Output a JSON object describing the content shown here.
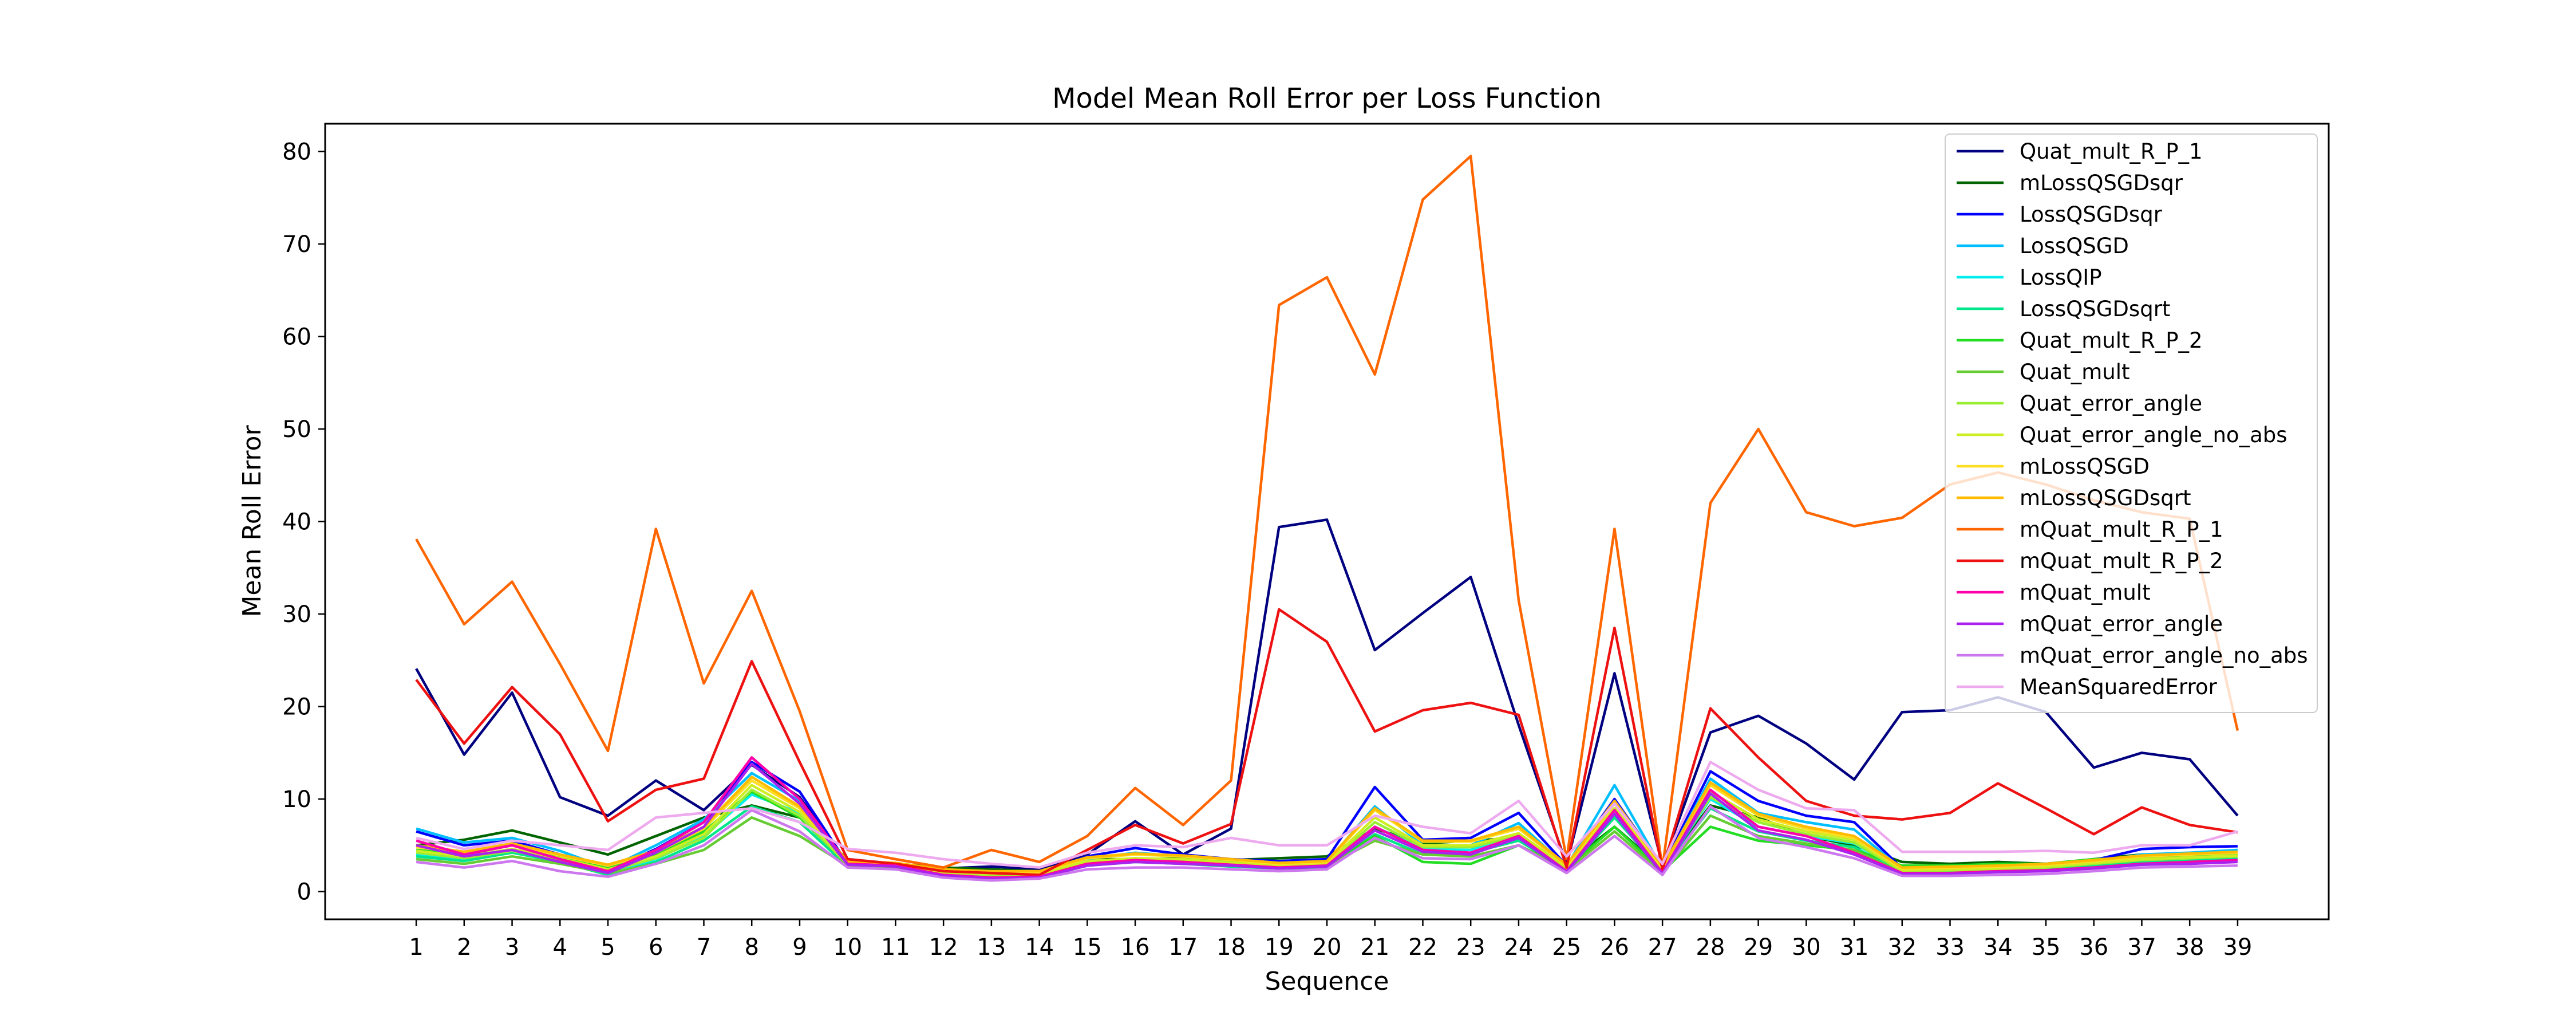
{
  "chart_data": {
    "type": "line",
    "title": "Model Mean Roll Error per Loss Function",
    "xlabel": "Sequence",
    "ylabel": "Mean Roll Error",
    "x": [
      1,
      2,
      3,
      4,
      5,
      6,
      7,
      8,
      9,
      10,
      11,
      12,
      13,
      14,
      15,
      16,
      17,
      18,
      19,
      20,
      21,
      22,
      23,
      24,
      25,
      26,
      27,
      28,
      29,
      30,
      31,
      32,
      33,
      34,
      35,
      36,
      37,
      38,
      39
    ],
    "xlim": [
      -0.9,
      40.9
    ],
    "ylim": [
      -3,
      83
    ],
    "yticks": [
      0,
      10,
      20,
      30,
      40,
      50,
      60,
      70,
      80
    ],
    "legend_position": "upper right",
    "grid": false,
    "series": [
      {
        "name": "Quat_mult_R_P_1",
        "color": "#000080",
        "values": [
          24.1,
          14.8,
          21.5,
          10.2,
          8.2,
          12.0,
          8.8,
          13.7,
          10.2,
          3.1,
          3.0,
          2.5,
          2.7,
          2.4,
          4.0,
          7.6,
          4.0,
          6.8,
          39.4,
          40.2,
          26.1,
          30.1,
          34.0,
          18.0,
          2.9,
          23.6,
          2.8,
          17.2,
          19.0,
          16.0,
          12.1,
          19.4,
          19.6,
          21.0,
          19.4,
          13.4,
          15.0,
          14.3,
          8.2
        ]
      },
      {
        "name": "mLossQSGDsqr",
        "color": "#006400",
        "values": [
          5.0,
          5.6,
          6.6,
          5.3,
          4.0,
          6.0,
          8.0,
          9.3,
          8.0,
          3.5,
          3.0,
          2.6,
          2.4,
          2.2,
          3.5,
          3.5,
          3.6,
          3.4,
          3.6,
          3.8,
          6.8,
          5.2,
          5.5,
          5.8,
          3.0,
          7.0,
          2.5,
          9.3,
          8.0,
          6.0,
          5.0,
          3.2,
          3.0,
          3.2,
          3.0,
          3.5,
          4.0,
          4.0,
          4.0
        ]
      },
      {
        "name": "LossQSGDsqr",
        "color": "#0000ff",
        "values": [
          6.5,
          5.0,
          5.5,
          4.0,
          2.3,
          4.6,
          7.5,
          14.0,
          10.8,
          3.0,
          2.8,
          2.0,
          1.8,
          2.0,
          3.8,
          4.7,
          4.0,
          3.5,
          3.3,
          3.5,
          11.3,
          5.6,
          5.8,
          8.5,
          2.8,
          10.0,
          2.6,
          13.0,
          9.8,
          8.2,
          7.5,
          2.5,
          2.6,
          2.8,
          3.0,
          3.4,
          4.6,
          4.8,
          4.9
        ]
      },
      {
        "name": "LossQSGD",
        "color": "#00bfff",
        "values": [
          6.8,
          5.3,
          5.8,
          4.4,
          2.5,
          5.0,
          7.8,
          12.8,
          9.8,
          3.0,
          2.8,
          2.0,
          1.9,
          2.0,
          3.5,
          4.2,
          3.8,
          3.3,
          3.0,
          3.2,
          9.2,
          5.0,
          5.0,
          7.4,
          2.7,
          11.5,
          2.5,
          12.2,
          8.5,
          7.5,
          6.7,
          2.4,
          2.5,
          2.6,
          2.8,
          3.2,
          4.0,
          4.2,
          4.5
        ]
      },
      {
        "name": "LossQIP",
        "color": "#00eeee",
        "values": [
          4.0,
          3.5,
          4.5,
          3.5,
          2.0,
          3.5,
          6.0,
          10.5,
          8.5,
          2.8,
          2.6,
          1.8,
          1.5,
          1.6,
          3.0,
          3.6,
          3.2,
          3.0,
          2.7,
          2.8,
          7.0,
          4.6,
          4.5,
          6.2,
          2.5,
          9.0,
          2.3,
          10.0,
          7.0,
          6.0,
          5.2,
          2.2,
          2.2,
          2.3,
          2.5,
          3.0,
          3.6,
          3.8,
          4.0
        ]
      },
      {
        "name": "LossQSGDsqrt",
        "color": "#00e68a",
        "values": [
          3.8,
          3.3,
          4.2,
          3.2,
          1.8,
          3.2,
          5.5,
          9.2,
          7.5,
          2.7,
          2.5,
          1.7,
          1.4,
          1.5,
          2.8,
          3.2,
          3.0,
          2.7,
          2.5,
          2.6,
          6.2,
          4.0,
          4.2,
          5.5,
          2.4,
          8.0,
          2.2,
          9.0,
          6.5,
          5.5,
          4.8,
          2.0,
          2.1,
          2.2,
          2.4,
          2.8,
          3.2,
          3.4,
          3.6
        ]
      },
      {
        "name": "Quat_mult_R_P_2",
        "color": "#22dd22",
        "values": [
          4.5,
          4.0,
          5.0,
          3.8,
          2.5,
          4.0,
          6.5,
          10.8,
          8.0,
          3.0,
          2.8,
          2.2,
          2.0,
          1.8,
          3.2,
          3.5,
          3.5,
          3.2,
          2.8,
          3.0,
          6.0,
          3.2,
          3.0,
          5.0,
          2.5,
          7.0,
          2.2,
          7.0,
          5.5,
          5.0,
          4.5,
          2.8,
          2.8,
          3.0,
          3.0,
          3.5,
          3.6,
          3.8,
          4.0
        ]
      },
      {
        "name": "Quat_mult",
        "color": "#66cc33",
        "values": [
          3.5,
          3.0,
          3.8,
          3.0,
          2.0,
          3.0,
          4.5,
          8.0,
          6.0,
          2.8,
          2.6,
          2.0,
          1.8,
          1.6,
          3.0,
          3.2,
          3.2,
          2.9,
          2.6,
          2.8,
          5.5,
          4.0,
          3.8,
          5.0,
          2.3,
          6.5,
          2.0,
          8.2,
          6.0,
          5.2,
          4.5,
          2.0,
          2.0,
          2.2,
          2.3,
          2.6,
          3.0,
          3.2,
          3.3
        ]
      },
      {
        "name": "Quat_error_angle",
        "color": "#99ee33",
        "values": [
          4.2,
          3.6,
          4.4,
          3.4,
          2.2,
          3.6,
          5.8,
          11.0,
          8.2,
          2.9,
          2.7,
          2.0,
          1.8,
          1.8,
          3.2,
          3.4,
          3.4,
          3.0,
          2.7,
          2.9,
          7.5,
          4.8,
          4.8,
          6.0,
          2.5,
          8.5,
          2.3,
          10.2,
          7.5,
          6.2,
          5.3,
          2.2,
          2.3,
          2.4,
          2.6,
          3.0,
          3.4,
          3.6,
          3.8
        ]
      },
      {
        "name": "Quat_error_angle_no_abs",
        "color": "#ccee22",
        "values": [
          4.4,
          3.8,
          4.6,
          3.6,
          2.4,
          3.8,
          6.2,
          11.5,
          8.6,
          3.0,
          2.8,
          2.1,
          1.9,
          1.9,
          3.3,
          3.6,
          3.5,
          3.1,
          2.8,
          3.0,
          8.0,
          5.0,
          5.0,
          6.3,
          2.6,
          9.0,
          2.4,
          10.8,
          7.8,
          6.5,
          5.6,
          2.3,
          2.4,
          2.5,
          2.7,
          3.1,
          3.5,
          3.7,
          3.9
        ]
      },
      {
        "name": "mLossQSGD",
        "color": "#ffdd22",
        "values": [
          4.8,
          4.2,
          5.0,
          3.9,
          2.8,
          4.2,
          6.8,
          12.0,
          9.0,
          3.2,
          3.0,
          2.3,
          2.1,
          2.1,
          3.6,
          4.0,
          3.8,
          3.4,
          3.0,
          3.2,
          8.8,
          5.4,
          5.4,
          6.8,
          2.8,
          9.5,
          2.6,
          11.5,
          8.2,
          6.8,
          5.8,
          2.5,
          2.6,
          2.7,
          2.9,
          3.3,
          3.8,
          4.0,
          4.2
        ]
      },
      {
        "name": "mLossQSGDsqrt",
        "color": "#ffbb00",
        "values": [
          5.0,
          4.3,
          5.2,
          4.0,
          2.9,
          4.4,
          7.0,
          12.4,
          9.2,
          3.3,
          3.1,
          2.4,
          2.2,
          2.2,
          3.7,
          4.1,
          3.9,
          3.5,
          3.1,
          3.3,
          9.0,
          5.5,
          5.5,
          7.0,
          2.9,
          9.8,
          2.7,
          11.8,
          8.4,
          7.0,
          6.0,
          2.6,
          2.7,
          2.8,
          3.0,
          3.4,
          3.9,
          4.1,
          4.3
        ]
      },
      {
        "name": "mQuat_mult_R_P_1",
        "color": "#ff6600",
        "values": [
          38.1,
          28.9,
          33.5,
          24.6,
          15.2,
          39.2,
          22.5,
          32.5,
          19.5,
          4.5,
          3.5,
          2.6,
          4.5,
          3.2,
          6.0,
          11.2,
          7.2,
          12.0,
          63.4,
          66.4,
          55.9,
          74.8,
          79.5,
          31.5,
          3.5,
          39.2,
          2.5,
          42.0,
          50.0,
          41.0,
          39.5,
          40.4,
          44.0,
          45.3,
          44.0,
          42.3,
          41.0,
          40.3,
          17.4
        ]
      },
      {
        "name": "mQuat_mult_R_P_2",
        "color": "#ee1111",
        "values": [
          22.9,
          16.0,
          22.1,
          17.0,
          7.6,
          11.0,
          12.2,
          24.9,
          14.0,
          3.5,
          3.0,
          2.2,
          2.0,
          1.8,
          4.5,
          7.2,
          5.2,
          7.3,
          30.5,
          27.0,
          17.3,
          19.6,
          20.4,
          19.1,
          2.6,
          28.5,
          2.4,
          19.8,
          14.5,
          9.8,
          8.2,
          7.8,
          8.5,
          11.7,
          9.0,
          6.2,
          9.1,
          7.2,
          6.4
        ]
      },
      {
        "name": "mQuat_mult",
        "color": "#ff00aa",
        "values": [
          5.5,
          4.0,
          5.0,
          3.5,
          2.2,
          4.5,
          7.5,
          14.5,
          10.0,
          3.0,
          2.8,
          1.8,
          1.5,
          1.6,
          3.0,
          3.4,
          3.2,
          2.9,
          2.6,
          2.8,
          7.0,
          4.5,
          4.2,
          6.0,
          2.2,
          8.8,
          2.0,
          11.0,
          7.0,
          6.0,
          4.2,
          2.0,
          2.0,
          2.2,
          2.3,
          2.6,
          3.0,
          3.2,
          3.4
        ]
      },
      {
        "name": "mQuat_error_angle",
        "color": "#aa22ee",
        "values": [
          5.0,
          3.8,
          4.5,
          3.2,
          2.0,
          4.2,
          7.0,
          13.8,
          9.5,
          2.9,
          2.7,
          1.7,
          1.4,
          1.5,
          2.8,
          3.2,
          3.0,
          2.8,
          2.5,
          2.7,
          6.6,
          4.3,
          4.0,
          5.8,
          2.1,
          8.4,
          1.9,
          10.6,
          6.6,
          5.6,
          4.0,
          1.9,
          1.9,
          2.1,
          2.2,
          2.5,
          2.9,
          3.0,
          3.2
        ]
      },
      {
        "name": "mQuat_error_angle_no_abs",
        "color": "#cc77ee",
        "values": [
          3.2,
          2.6,
          3.3,
          2.2,
          1.6,
          3.0,
          5.0,
          8.8,
          6.5,
          2.6,
          2.4,
          1.5,
          1.2,
          1.4,
          2.4,
          2.6,
          2.6,
          2.4,
          2.2,
          2.4,
          5.8,
          3.6,
          3.5,
          5.0,
          2.0,
          6.0,
          1.8,
          9.2,
          5.8,
          4.8,
          3.6,
          1.7,
          1.7,
          1.8,
          1.9,
          2.2,
          2.6,
          2.7,
          2.8
        ]
      },
      {
        "name": "MeanSquaredError",
        "color": "#eeaaee",
        "values": [
          5.8,
          4.6,
          5.5,
          5.0,
          4.5,
          8.0,
          8.5,
          9.0,
          7.5,
          4.6,
          4.2,
          3.5,
          3.0,
          2.6,
          4.2,
          5.0,
          4.8,
          5.8,
          5.0,
          5.0,
          8.2,
          7.0,
          6.3,
          9.8,
          3.8,
          9.5,
          3.0,
          14.0,
          11.0,
          9.0,
          8.8,
          4.3,
          4.3,
          4.3,
          4.4,
          4.2,
          5.0,
          5.0,
          6.5
        ]
      }
    ]
  }
}
